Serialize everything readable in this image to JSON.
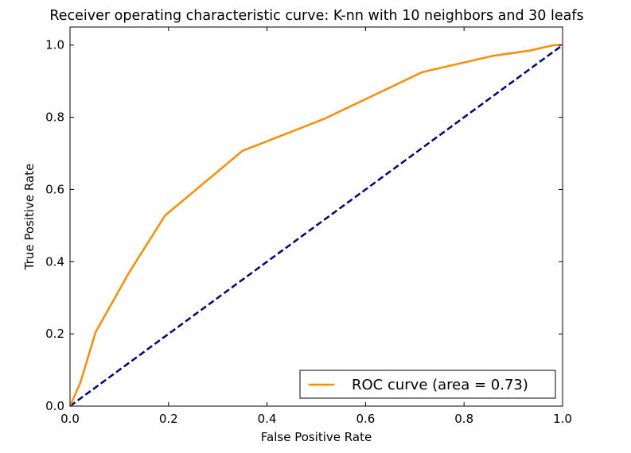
{
  "chart_data": {
    "type": "line",
    "title": "Receiver operating characteristic curve: K-nn with 10 neighbors and 30 leafs",
    "xlabel": "False Positive Rate",
    "ylabel": "True Positive Rate",
    "xlim": [
      0.0,
      1.0
    ],
    "ylim": [
      0.0,
      1.05
    ],
    "xticks": [
      "0.0",
      "0.2",
      "0.4",
      "0.6",
      "0.8",
      "1.0"
    ],
    "yticks": [
      "0.0",
      "0.2",
      "0.4",
      "0.6",
      "0.8",
      "1.0"
    ],
    "grid": false,
    "legend_position": "lower-right",
    "series": [
      {
        "name": "ROC curve (area = 0.73)",
        "color": "#ff8c00",
        "style": "solid",
        "x": [
          0.0,
          0.021,
          0.052,
          0.12,
          0.193,
          0.35,
          0.515,
          0.715,
          0.858,
          0.935,
          0.983,
          1.0
        ],
        "y": [
          0.0,
          0.065,
          0.205,
          0.37,
          0.528,
          0.707,
          0.795,
          0.925,
          0.97,
          0.985,
          1.0,
          1.0
        ]
      },
      {
        "color": "#000080",
        "style": "dashed",
        "x": [
          0.0,
          1.0
        ],
        "y": [
          0.0,
          1.0
        ]
      }
    ]
  }
}
